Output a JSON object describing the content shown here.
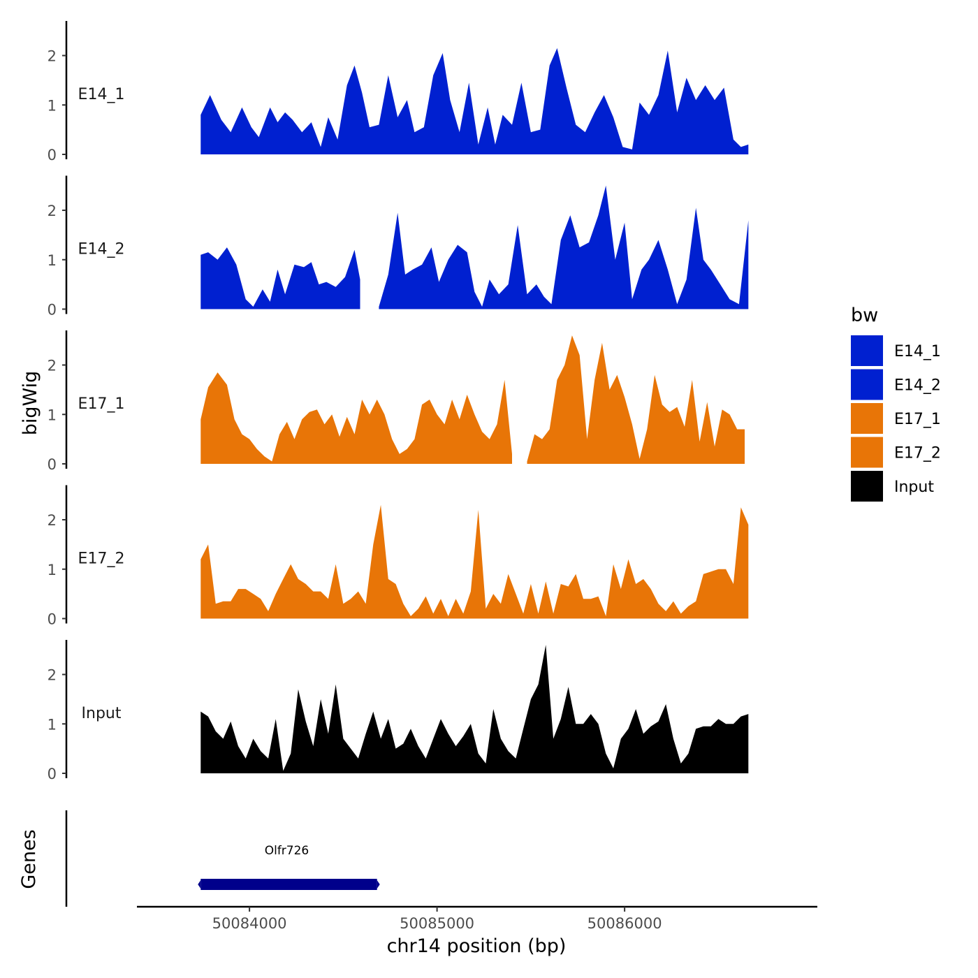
{
  "chart_data": {
    "type": "area",
    "chromosome": "chr14",
    "y_axis_title": "bigWig",
    "x_axis_title": "chr14 position (bp)",
    "xlim": [
      50083400,
      50087020
    ],
    "ylim": [
      0,
      2.7
    ],
    "x_ticks": [
      50084000,
      50085000,
      50086000
    ],
    "y_ticks": [
      0,
      1,
      2
    ],
    "legend_title": "bw",
    "genes_panel_title": "Genes",
    "genes": [
      {
        "name": "Olfr726",
        "start": 50083740,
        "end": 50084680,
        "color": "#00008B"
      }
    ],
    "series": [
      {
        "name": "E14_1",
        "color": "#0020D0",
        "x": [
          50083740,
          50083790,
          50083850,
          50083900,
          50083960,
          50084010,
          50084050,
          50084110,
          50084150,
          50084190,
          50084230,
          50084280,
          50084330,
          50084380,
          50084420,
          50084470,
          50084520,
          50084560,
          50084600,
          50084640,
          50084690,
          50084740,
          50084790,
          50084840,
          50084880,
          50084930,
          50084980,
          50085030,
          50085070,
          50085120,
          50085170,
          50085220,
          50085270,
          50085310,
          50085350,
          50085400,
          50085450,
          50085500,
          50085550,
          50085600,
          50085640,
          50085690,
          50085740,
          50085790,
          50085840,
          50085890,
          50085940,
          50085990,
          50086040,
          50086080,
          50086130,
          50086180,
          50086230,
          50086280,
          50086330,
          50086380,
          50086430,
          50086480,
          50086530,
          50086580,
          50086620,
          50086660
        ],
        "values": [
          0.8,
          1.2,
          0.7,
          0.45,
          0.95,
          0.55,
          0.35,
          0.95,
          0.65,
          0.85,
          0.7,
          0.45,
          0.65,
          0.15,
          0.75,
          0.3,
          1.4,
          1.8,
          1.25,
          0.55,
          0.6,
          1.6,
          0.75,
          1.1,
          0.45,
          0.55,
          1.6,
          2.05,
          1.1,
          0.45,
          1.45,
          0.2,
          0.95,
          0.2,
          0.8,
          0.6,
          1.45,
          0.45,
          0.5,
          1.8,
          2.15,
          1.35,
          0.6,
          0.45,
          0.85,
          1.2,
          0.75,
          0.15,
          0.1,
          1.05,
          0.8,
          1.2,
          2.1,
          0.85,
          1.55,
          1.1,
          1.4,
          1.1,
          1.35,
          0.3,
          0.15,
          0.2
        ]
      },
      {
        "name": "E14_2",
        "color": "#0020D0",
        "x": [
          50083740,
          50083780,
          50083830,
          50083880,
          50083930,
          50083980,
          50084020,
          50084070,
          50084110,
          50084150,
          50084190,
          50084240,
          50084290,
          50084330,
          50084370,
          50084410,
          50084460,
          50084510,
          50084560,
          50084590,
          50084640,
          50084690,
          50084740,
          50084790,
          50084830,
          50084870,
          50084920,
          50084970,
          50085010,
          50085060,
          50085110,
          50085160,
          50085200,
          50085240,
          50085280,
          50085330,
          50085380,
          50085430,
          50085480,
          50085530,
          50085570,
          50085610,
          50085660,
          50085710,
          50085760,
          50085810,
          50085860,
          50085900,
          50085950,
          50086000,
          50086040,
          50086090,
          50086130,
          50086180,
          50086230,
          50086280,
          50086330,
          50086380,
          50086420,
          50086460,
          50086510,
          50086560,
          50086610,
          50086660
        ],
        "values": [
          1.1,
          1.15,
          1.0,
          1.25,
          0.9,
          0.2,
          0.05,
          0.4,
          0.15,
          0.8,
          0.3,
          0.9,
          0.85,
          0.95,
          0.5,
          0.55,
          0.45,
          0.65,
          1.2,
          0.6,
          null,
          0.05,
          0.7,
          1.95,
          0.7,
          0.8,
          0.9,
          1.25,
          0.55,
          1.0,
          1.3,
          1.15,
          0.35,
          0.05,
          0.6,
          0.3,
          0.5,
          1.7,
          0.3,
          0.5,
          0.25,
          0.1,
          1.4,
          1.9,
          1.25,
          1.35,
          1.9,
          2.5,
          1.0,
          1.75,
          0.2,
          0.8,
          1.0,
          1.4,
          0.8,
          0.1,
          0.6,
          2.05,
          1.0,
          0.8,
          0.5,
          0.2,
          0.1,
          1.8
        ]
      },
      {
        "name": "E17_1",
        "color": "#E87507",
        "x": [
          50083740,
          50083780,
          50083830,
          50083880,
          50083920,
          50083960,
          50084000,
          50084040,
          50084080,
          50084120,
          50084160,
          50084200,
          50084240,
          50084280,
          50084320,
          50084360,
          50084400,
          50084440,
          50084480,
          50084520,
          50084560,
          50084600,
          50084640,
          50084680,
          50084720,
          50084760,
          50084800,
          50084840,
          50084880,
          50084920,
          50084960,
          50085000,
          50085040,
          50085080,
          50085120,
          50085160,
          50085200,
          50085240,
          50085280,
          50085320,
          50085360,
          50085400,
          50085440,
          50085480,
          50085520,
          50085560,
          50085600,
          50085640,
          50085680,
          50085720,
          50085760,
          50085800,
          50085840,
          50085880,
          50085920,
          50085960,
          50086000,
          50086040,
          50086080,
          50086120,
          50086160,
          50086200,
          50086240,
          50086280,
          50086320,
          50086360,
          50086400,
          50086440,
          50086480,
          50086520,
          50086560,
          50086600,
          50086640
        ],
        "values": [
          0.9,
          1.55,
          1.85,
          1.6,
          0.9,
          0.6,
          0.5,
          0.3,
          0.15,
          0.05,
          0.6,
          0.85,
          0.5,
          0.9,
          1.05,
          1.1,
          0.8,
          1.0,
          0.55,
          0.95,
          0.6,
          1.3,
          1.0,
          1.3,
          1.0,
          0.5,
          0.2,
          0.3,
          0.5,
          1.2,
          1.3,
          1.0,
          0.8,
          1.3,
          0.9,
          1.4,
          1.0,
          0.65,
          0.5,
          0.8,
          1.7,
          0.2,
          null,
          0.05,
          0.6,
          0.5,
          0.7,
          1.7,
          2.0,
          2.6,
          2.2,
          0.5,
          1.7,
          2.45,
          1.5,
          1.8,
          1.35,
          0.8,
          0.1,
          0.7,
          1.8,
          1.2,
          1.05,
          1.15,
          0.75,
          1.7,
          0.45,
          1.25,
          0.35,
          1.1,
          1.0,
          0.7,
          0.7
        ]
      },
      {
        "name": "E17_2",
        "color": "#E87507",
        "x": [
          50083740,
          50083780,
          50083820,
          50083860,
          50083900,
          50083940,
          50083980,
          50084020,
          50084060,
          50084100,
          50084140,
          50084180,
          50084220,
          50084260,
          50084300,
          50084340,
          50084380,
          50084420,
          50084460,
          50084500,
          50084540,
          50084580,
          50084620,
          50084660,
          50084700,
          50084740,
          50084780,
          50084820,
          50084860,
          50084900,
          50084940,
          50084980,
          50085020,
          50085060,
          50085100,
          50085140,
          50085180,
          50085220,
          50085260,
          50085300,
          50085340,
          50085380,
          50085420,
          50085460,
          50085500,
          50085540,
          50085580,
          50085620,
          50085660,
          50085700,
          50085740,
          50085780,
          50085820,
          50085860,
          50085900,
          50085940,
          50085980,
          50086020,
          50086060,
          50086100,
          50086140,
          50086180,
          50086220,
          50086260,
          50086300,
          50086340,
          50086380,
          50086420,
          50086460,
          50086500,
          50086540,
          50086580,
          50086620,
          50086660
        ],
        "values": [
          1.2,
          1.5,
          0.3,
          0.35,
          0.35,
          0.6,
          0.6,
          0.5,
          0.4,
          0.15,
          0.5,
          0.8,
          1.1,
          0.8,
          0.7,
          0.55,
          0.55,
          0.4,
          1.1,
          0.3,
          0.4,
          0.55,
          0.3,
          1.5,
          2.3,
          0.8,
          0.7,
          0.3,
          0.05,
          0.2,
          0.45,
          0.1,
          0.4,
          0.05,
          0.4,
          0.1,
          0.55,
          2.2,
          0.2,
          0.5,
          0.3,
          0.9,
          0.5,
          0.1,
          0.7,
          0.1,
          0.75,
          0.1,
          0.7,
          0.65,
          0.9,
          0.4,
          0.4,
          0.45,
          0.05,
          1.1,
          0.6,
          1.2,
          0.7,
          0.8,
          0.6,
          0.3,
          0.15,
          0.35,
          0.1,
          0.25,
          0.35,
          0.9,
          0.95,
          1.0,
          1.0,
          0.7,
          2.25,
          1.9
        ]
      },
      {
        "name": "Input",
        "color": "#000000",
        "x": [
          50083740,
          50083780,
          50083820,
          50083860,
          50083900,
          50083940,
          50083980,
          50084020,
          50084060,
          50084100,
          50084140,
          50084180,
          50084220,
          50084260,
          50084300,
          50084340,
          50084380,
          50084420,
          50084460,
          50084500,
          50084540,
          50084580,
          50084620,
          50084660,
          50084700,
          50084740,
          50084780,
          50084820,
          50084860,
          50084900,
          50084940,
          50084980,
          50085020,
          50085060,
          50085100,
          50085140,
          50085180,
          50085220,
          50085260,
          50085300,
          50085340,
          50085380,
          50085420,
          50085460,
          50085500,
          50085540,
          50085580,
          50085620,
          50085660,
          50085700,
          50085740,
          50085780,
          50085820,
          50085860,
          50085900,
          50085940,
          50085980,
          50086020,
          50086060,
          50086100,
          50086140,
          50086180,
          50086220,
          50086260,
          50086300,
          50086340,
          50086380,
          50086420,
          50086460,
          50086500,
          50086540,
          50086580,
          50086620,
          50086660
        ],
        "values": [
          1.25,
          1.15,
          0.85,
          0.7,
          1.05,
          0.55,
          0.3,
          0.7,
          0.45,
          0.3,
          1.1,
          0.05,
          0.4,
          1.7,
          1.05,
          0.55,
          1.5,
          0.8,
          1.8,
          0.7,
          0.5,
          0.3,
          0.8,
          1.25,
          0.7,
          1.1,
          0.5,
          0.6,
          0.9,
          0.55,
          0.3,
          0.7,
          1.1,
          0.8,
          0.55,
          0.75,
          1.0,
          0.4,
          0.2,
          1.3,
          0.7,
          0.45,
          0.3,
          0.9,
          1.5,
          1.8,
          2.6,
          0.7,
          1.1,
          1.75,
          1.0,
          1.0,
          1.2,
          1.0,
          0.4,
          0.1,
          0.7,
          0.9,
          1.3,
          0.8,
          0.95,
          1.05,
          1.4,
          0.7,
          0.2,
          0.4,
          0.9,
          0.95,
          0.95,
          1.1,
          1.0,
          1.0,
          1.15,
          1.2
        ]
      }
    ]
  }
}
